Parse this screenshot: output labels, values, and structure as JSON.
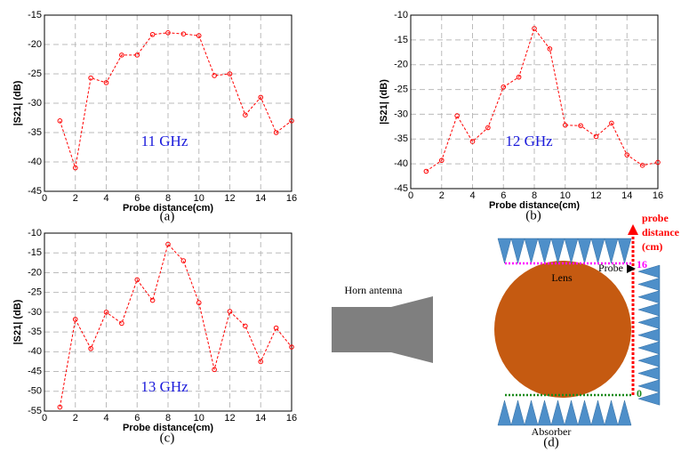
{
  "chart_data": [
    {
      "type": "line",
      "caption": "(a)",
      "annotation": "11 GHz",
      "xlabel": "Probe distance(cm)",
      "ylabel": "|S21| (dB)",
      "x": [
        1,
        2,
        3,
        4,
        5,
        6,
        7,
        8,
        9,
        10,
        11,
        12,
        13,
        14,
        15,
        16
      ],
      "series": [
        {
          "color": "#ff0000",
          "values": [
            -33,
            -41,
            -25.7,
            -26.5,
            -21.8,
            -21.8,
            -18.3,
            -18,
            -18.2,
            -18.5,
            -25.3,
            -25,
            -32,
            -29,
            -35,
            -33
          ]
        }
      ],
      "xlim": [
        0,
        16
      ],
      "xticks": [
        0,
        2,
        4,
        6,
        8,
        10,
        12,
        14,
        16
      ],
      "ylim": [
        -45,
        -15
      ],
      "yticks": [
        -45,
        -40,
        -35,
        -30,
        -25,
        -20,
        -15
      ],
      "grid": true
    },
    {
      "type": "line",
      "caption": "(b)",
      "annotation": "12 GHz",
      "xlabel": "Probe distance(cm)",
      "ylabel": "|S21| (dB)",
      "x": [
        1,
        2,
        3,
        4,
        5,
        6,
        7,
        8,
        9,
        10,
        11,
        12,
        13,
        14,
        15,
        16
      ],
      "series": [
        {
          "color": "#ff0000",
          "values": [
            -41.5,
            -39.3,
            -30.3,
            -35.5,
            -32.7,
            -24.5,
            -22.5,
            -12.7,
            -16.8,
            -32.2,
            -32.3,
            -34.5,
            -31.8,
            -38.2,
            -40.3,
            -39.7
          ]
        }
      ],
      "xlim": [
        0,
        16
      ],
      "xticks": [
        0,
        2,
        4,
        6,
        8,
        10,
        12,
        14,
        16
      ],
      "ylim": [
        -45,
        -10
      ],
      "yticks": [
        -45,
        -40,
        -35,
        -30,
        -25,
        -20,
        -15,
        -10
      ],
      "grid": true
    },
    {
      "type": "line",
      "caption": "(c)",
      "annotation": "13 GHz",
      "xlabel": "Probe distance(cm)",
      "ylabel": "|S21| (dB)",
      "x": [
        1,
        2,
        3,
        4,
        5,
        6,
        7,
        8,
        9,
        10,
        11,
        12,
        13,
        14,
        15,
        16
      ],
      "series": [
        {
          "color": "#ff0000",
          "values": [
            -54,
            -31.8,
            -39.2,
            -30,
            -32.8,
            -21.8,
            -27,
            -12.8,
            -17,
            -27.6,
            -44.5,
            -29.8,
            -33.5,
            -42.5,
            -34,
            -38.8
          ]
        }
      ],
      "xlim": [
        0,
        16
      ],
      "xticks": [
        0,
        2,
        4,
        6,
        8,
        10,
        12,
        14,
        16
      ],
      "ylim": [
        -55,
        -10
      ],
      "yticks": [
        -55,
        -50,
        -45,
        -40,
        -35,
        -30,
        -25,
        -20,
        -15,
        -10
      ],
      "grid": true
    }
  ],
  "diagram": {
    "caption": "(d)",
    "horn": "Horn antenna",
    "lens": "Lens",
    "probe": "Probe",
    "absorber": "Absorber",
    "axis_label": [
      "probe",
      "distance",
      "(cm)"
    ],
    "top_mark": "16",
    "bottom_mark": "0"
  }
}
